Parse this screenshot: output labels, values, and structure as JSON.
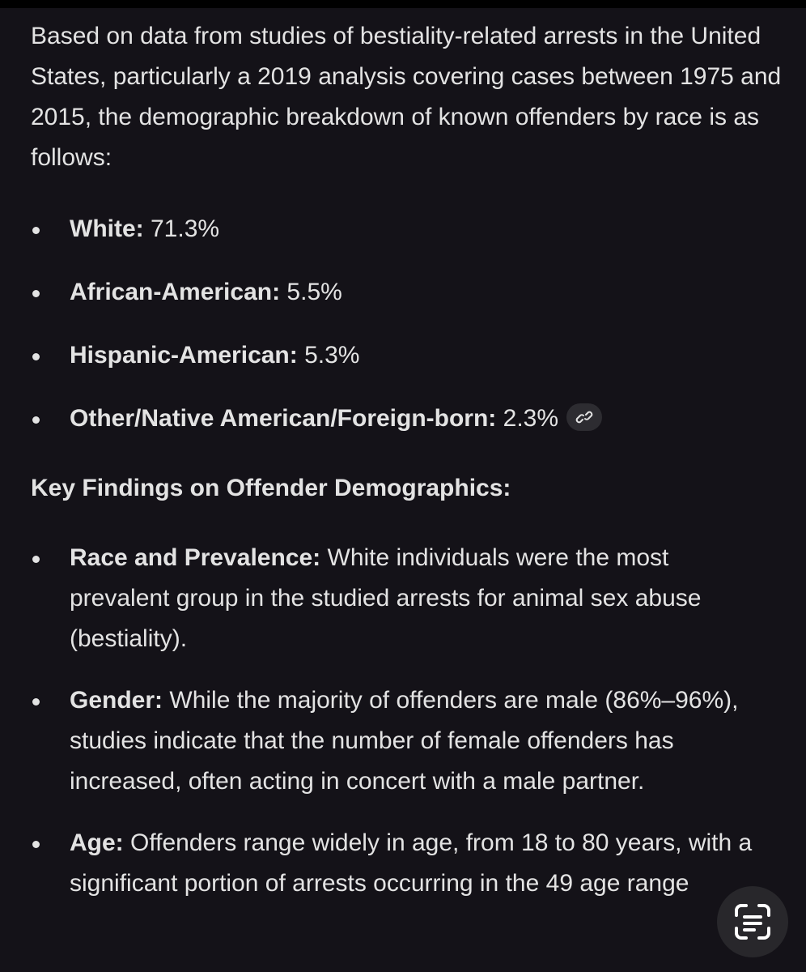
{
  "intro": "Based on data from studies of bestiality-related arrests in the United States, particularly a 2019 analysis covering cases between 1975 and 2015, the demographic breakdown of known offenders by race is as follows:",
  "breakdown": [
    {
      "label": "White:",
      "value": "71.3%"
    },
    {
      "label": "African-American:",
      "value": "5.5%"
    },
    {
      "label": "Hispanic-American:",
      "value": "5.3%"
    },
    {
      "label": "Other/Native American/Foreign-born:",
      "value": "2.3%"
    }
  ],
  "heading": "Key Findings on Offender Demographics:",
  "findings": [
    {
      "label": "Race and Prevalence:",
      "text": "White individuals were the most prevalent group in the studied arrests for animal sex abuse (bestiality)."
    },
    {
      "label": "Gender:",
      "text": "While the majority of offenders are male (86%–96%), studies indicate that the number of female offenders has increased, often acting in concert with a male partner."
    },
    {
      "label": "Age:",
      "text": "Offenders range widely in age, from 18 to 80 years, with a significant portion of arrests occurring in the",
      "cut": "49 age range"
    }
  ]
}
